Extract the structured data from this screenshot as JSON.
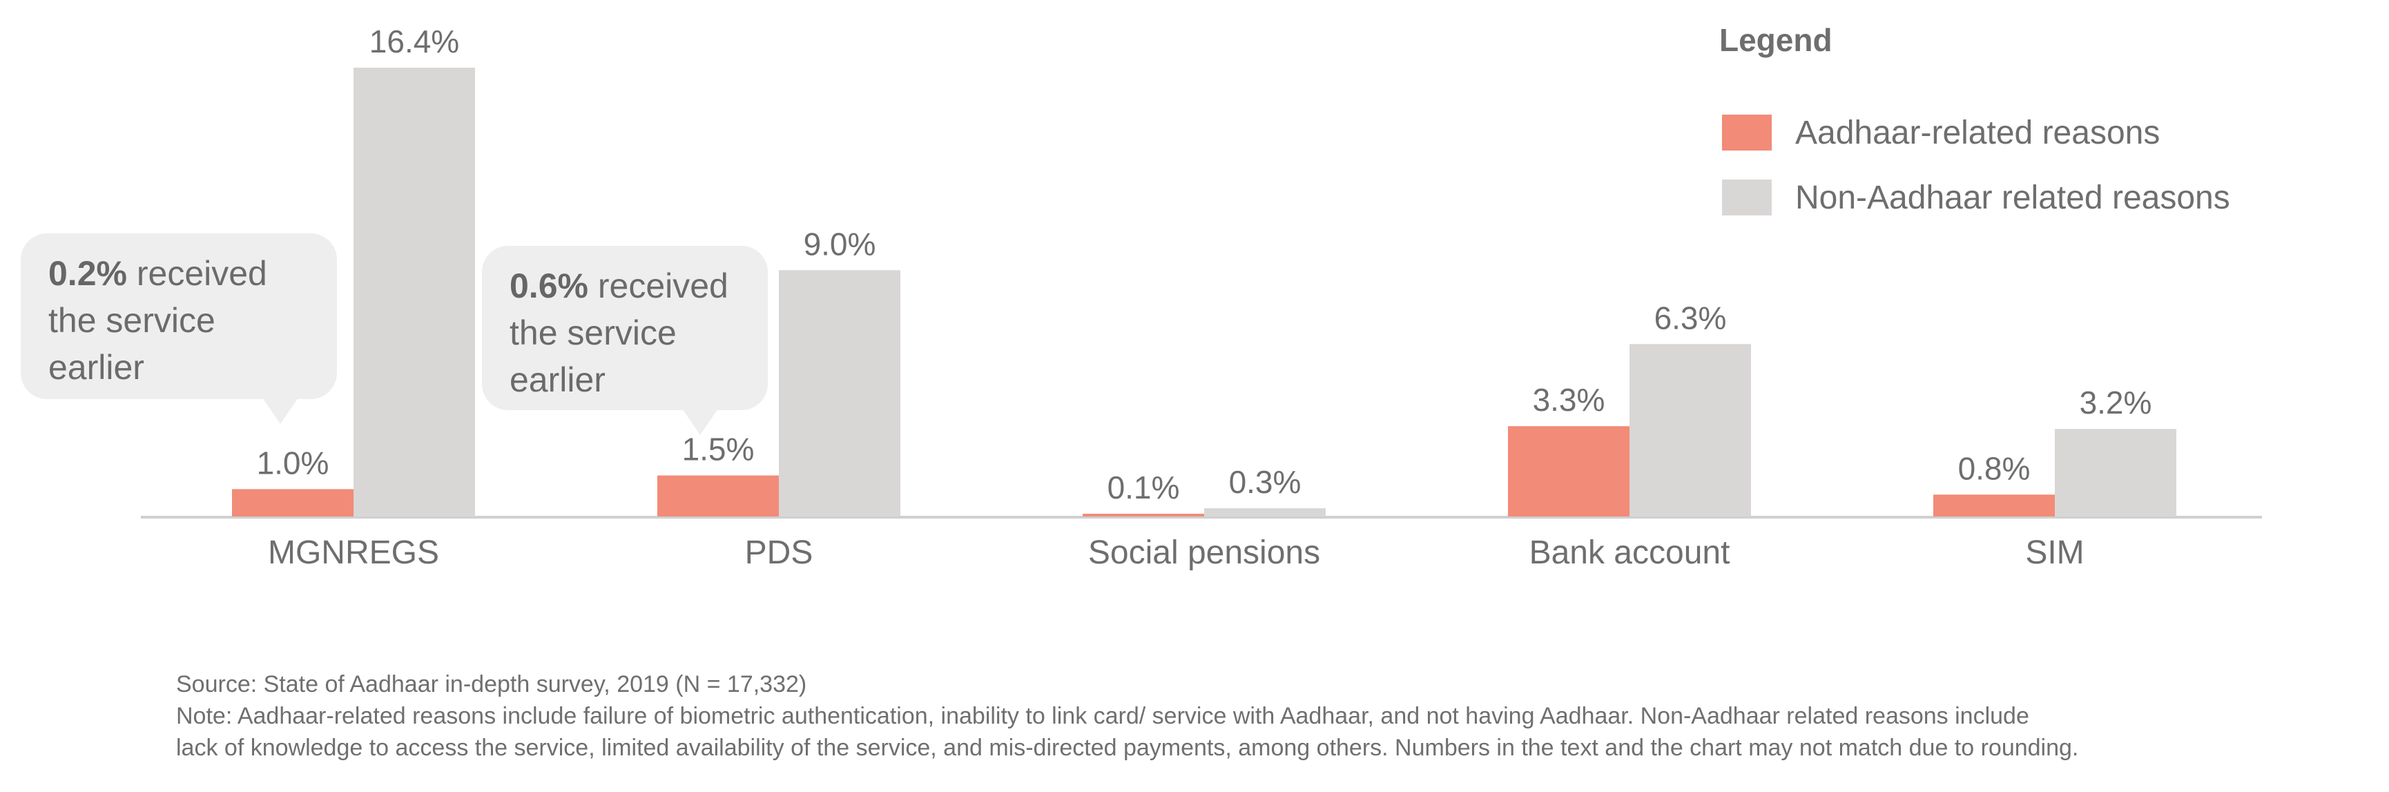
{
  "chart_data": {
    "type": "bar",
    "categories": [
      "MGNREGS",
      "PDS",
      "Social pensions",
      "Bank account",
      "SIM"
    ],
    "series": [
      {
        "name": "Aadhaar-related reasons",
        "color": "#f28b77",
        "values": [
          1.0,
          1.5,
          0.1,
          3.3,
          0.8
        ],
        "labels": [
          "1.0%",
          "1.5%",
          "0.1%",
          "3.3%",
          "0.8%"
        ]
      },
      {
        "name": "Non-Aadhaar related reasons",
        "color": "#d9d6d6",
        "values": [
          16.4,
          9.0,
          0.3,
          6.3,
          3.2
        ],
        "labels": [
          "16.4%",
          "9.0%",
          "0.3%",
          "6.3%",
          "3.2%"
        ]
      }
    ],
    "unit": "%",
    "ylim": [
      0,
      16.4
    ],
    "legend": {
      "title": "Legend",
      "position": "top-right"
    },
    "grid": false
  },
  "callouts": [
    {
      "category": "MGNREGS",
      "bold": "0.2%",
      "line1_rest": " received",
      "line2": "the service",
      "line3": "earlier"
    },
    {
      "category": "PDS",
      "bold": "0.6%",
      "line1_rest": " received",
      "line2": "the service",
      "line3": "earlier"
    }
  ],
  "footer": {
    "source": "Source: State of Aadhaar in-depth survey, 2019  (N = 17,332)",
    "note_line1": "Note: Aadhaar-related reasons include failure of biometric authentication, inability to link card/ service with Aadhaar, and not having Aadhaar. Non-Aadhaar related reasons include",
    "note_line2": "lack of knowledge to access the service, limited availability of the service, and mis-directed payments, among others. Numbers in the text and the chart may not match due to rounding."
  }
}
